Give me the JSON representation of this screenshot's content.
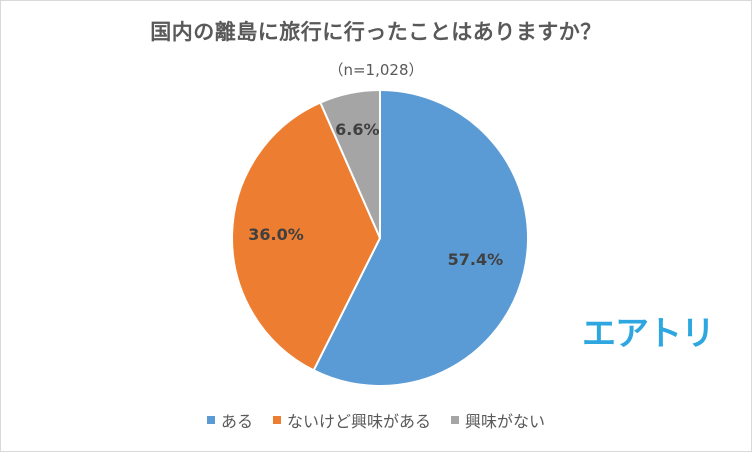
{
  "chart_data": {
    "type": "pie",
    "title": "国内の離島に旅行に行ったことはありますか？",
    "subtitle": "（n=1,028）",
    "slices": [
      {
        "name": "ある",
        "value": 57.4,
        "label": "57.4%",
        "color": "#5b9bd5"
      },
      {
        "name": "ないけど興味がある",
        "value": 36.0,
        "label": "36.0%",
        "color": "#ed7d31"
      },
      {
        "name": "興味がない",
        "value": 6.6,
        "label": "6.6%",
        "color": "#a5a5a5"
      }
    ],
    "start": "12 o'clock",
    "direction": "clockwise",
    "legend_position": "bottom"
  },
  "logo": {
    "text": "エアトリ",
    "color": "#2ea7e0"
  }
}
